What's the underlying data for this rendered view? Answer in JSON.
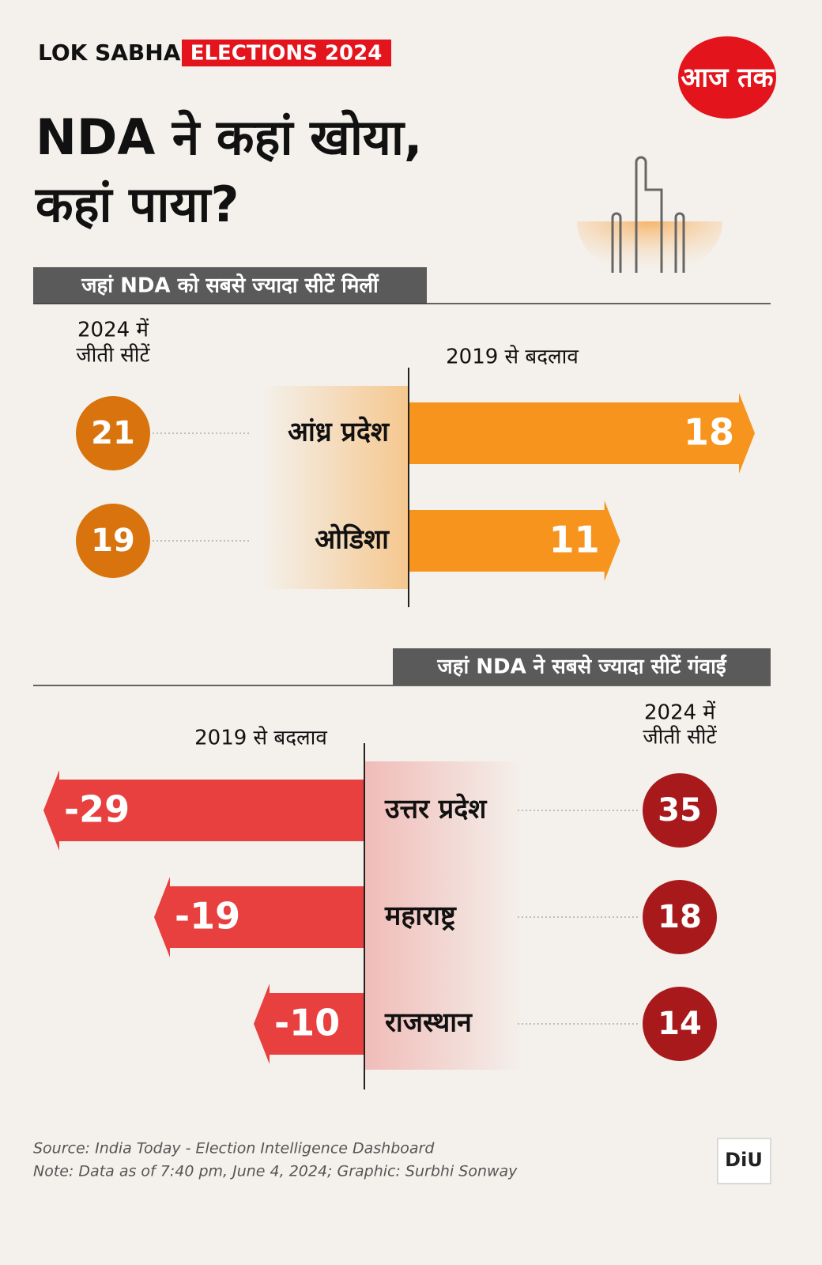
{
  "header": {
    "brand_left": "LOK SABHA",
    "brand_right": "ELECTIONS 2024",
    "logo": "आज तक",
    "title_lines": [
      "NDA ने कहां खोया,",
      "कहां पाया?"
    ]
  },
  "chart_data": [
    {
      "type": "bar",
      "title": "जहां NDA को सबसे ज्यादा सीटें मिलीं",
      "seats_label": [
        "2024 में",
        "जीती सीटें"
      ],
      "change_label": "2019 से बदलाव",
      "categories": [
        "आंध्र प्रदेश",
        "ओडिशा"
      ],
      "seats": [
        21,
        19
      ],
      "values": [
        18,
        11
      ],
      "color": "#f7941d",
      "seat_color": "#d9730d"
    },
    {
      "type": "bar",
      "title": "जहां NDA ने सबसे ज्यादा सीटें गंवाईं",
      "seats_label": [
        "2024 में",
        "जीती सीटें"
      ],
      "change_label": "2019 से बदलाव",
      "categories": [
        "उत्तर प्रदेश",
        "महाराष्ट्र",
        "राजस्थान"
      ],
      "seats": [
        35,
        18,
        14
      ],
      "values": [
        -29,
        -19,
        -10
      ],
      "color": "#e8403f",
      "seat_color": "#a8191c"
    }
  ],
  "footer": {
    "source": "Source: India Today - Election Intelligence Dashboard",
    "note": "Note: Data as of 7:40 pm, June 4, 2024; Graphic: Surbhi Sonway",
    "badge": "DiU"
  }
}
